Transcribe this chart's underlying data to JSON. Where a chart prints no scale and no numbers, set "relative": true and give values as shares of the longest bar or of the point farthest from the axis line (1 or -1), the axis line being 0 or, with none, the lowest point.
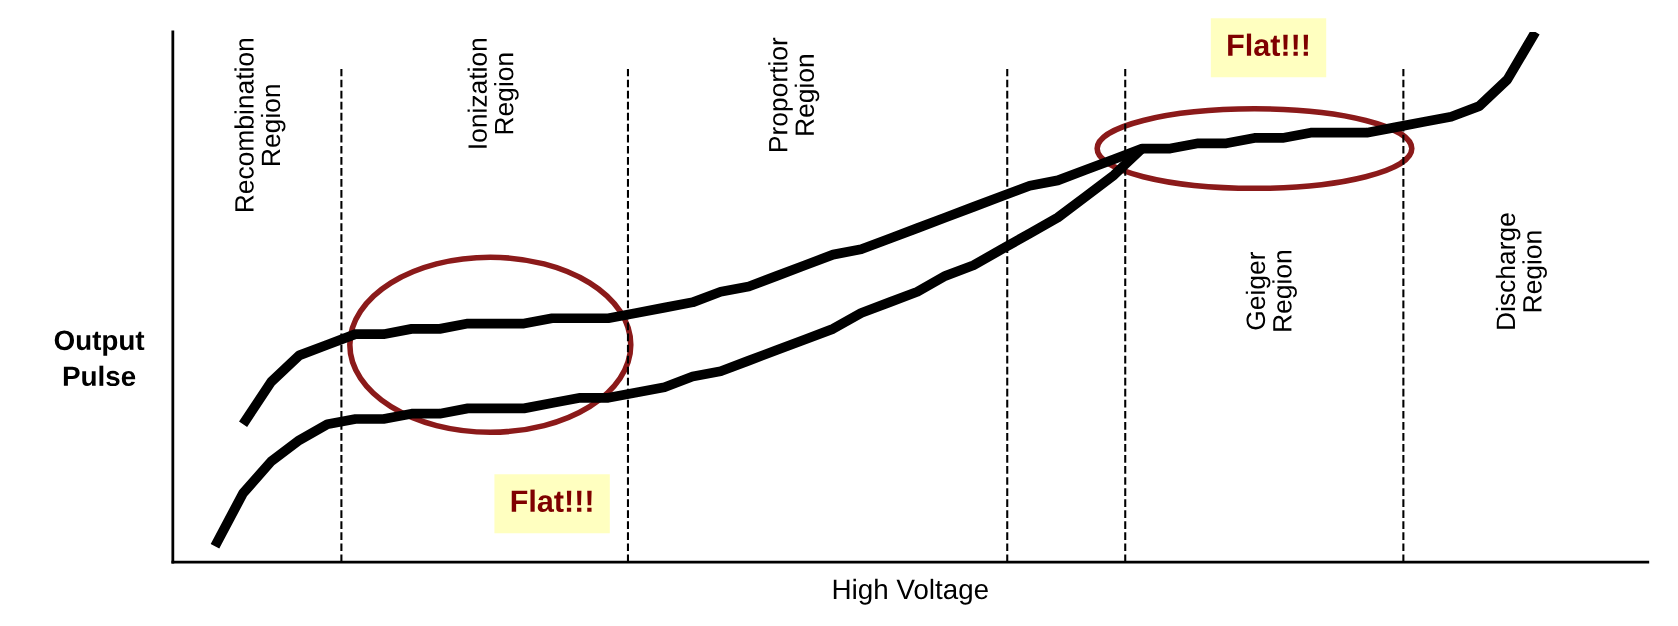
{
  "chart_data": {
    "type": "line",
    "relative": true,
    "xlabel": "High Voltage",
    "ylabel": "Output Pulse",
    "categories": [
      null,
      null,
      null,
      null,
      null,
      null,
      null,
      null,
      null,
      null,
      null,
      null,
      null,
      null,
      null,
      null,
      null,
      null,
      null,
      null,
      null,
      null,
      null,
      null,
      null,
      null,
      null,
      null,
      null,
      null,
      null,
      null,
      null,
      null,
      null,
      null,
      null,
      null,
      null,
      null,
      null,
      null,
      null,
      null,
      null,
      null,
      null,
      null,
      null,
      null,
      null,
      null,
      null
    ],
    "series": [
      {
        "color": "#000000",
        "values": [
          null,
          null,
          0.26,
          0.34,
          0.39,
          0.41,
          0.43,
          0.43,
          0.44,
          0.44,
          0.45,
          0.45,
          0.45,
          0.46,
          0.46,
          0.46,
          0.47,
          0.48,
          0.49,
          0.51,
          0.52,
          0.54,
          0.56,
          0.58,
          0.59,
          0.61,
          0.63,
          0.65,
          0.67,
          0.69,
          0.71,
          0.72,
          0.74,
          0.76,
          0.78,
          0.78,
          0.79,
          0.79,
          0.8,
          0.8,
          0.81,
          0.81,
          0.81,
          0.82,
          0.83,
          0.84,
          0.86,
          0.91,
          1.0,
          null,
          null,
          null,
          null
        ]
      },
      {
        "color": "#000000",
        "values": [
          null,
          0.03,
          0.13,
          0.19,
          0.23,
          0.26,
          0.27,
          0.27,
          0.28,
          0.28,
          0.29,
          0.29,
          0.29,
          0.3,
          0.31,
          0.31,
          0.32,
          0.33,
          0.35,
          0.36,
          0.38,
          0.4,
          0.42,
          0.44,
          0.47,
          0.49,
          0.51,
          0.54,
          0.56,
          0.59,
          0.62,
          0.65,
          0.69,
          0.73,
          0.78,
          null,
          null,
          null,
          null,
          null,
          null,
          null,
          null,
          null,
          null,
          null,
          null,
          null,
          null,
          null,
          null,
          null,
          null
        ]
      }
    ],
    "annotations": [
      "Recombination\nRegion",
      "Ionization\nRegion",
      "Proportior\nRegion",
      "Geiger\nRegion",
      "Discharge\nRegion",
      "Flat!!!",
      "Flat!!!"
    ],
    "tick_labels": false,
    "grid": false,
    "marker": "none",
    "line_style": "solid"
  }
}
